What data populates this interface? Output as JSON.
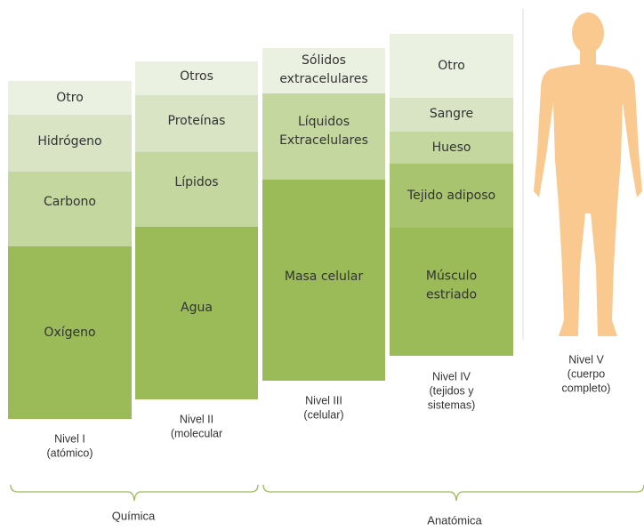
{
  "levels": [
    {
      "segments": [
        {
          "label": [
            "Otro"
          ]
        },
        {
          "label": [
            "Hidrógeno"
          ]
        },
        {
          "label": [
            "Carbono"
          ]
        },
        {
          "label": [
            "Oxígeno"
          ]
        }
      ],
      "label": [
        "Nivel I",
        "(atómico)"
      ]
    },
    {
      "segments": [
        {
          "label": [
            "Otros"
          ]
        },
        {
          "label": [
            "Proteínas"
          ]
        },
        {
          "label": [
            "Lípidos"
          ]
        },
        {
          "label": [
            "Agua"
          ]
        }
      ],
      "label": [
        "Nivel II",
        "(molecular"
      ]
    },
    {
      "segments": [
        {
          "label": [
            "Sólidos",
            "extracelulares"
          ]
        },
        {
          "label": [
            "Líquidos",
            "Extracelulares"
          ]
        },
        {
          "label": [
            "Masa celular"
          ]
        }
      ],
      "label": [
        "Nivel III",
        "(celular)"
      ]
    },
    {
      "segments": [
        {
          "label": [
            "Otro"
          ]
        },
        {
          "label": [
            "Sangre"
          ]
        },
        {
          "label": [
            "Hueso"
          ]
        },
        {
          "label": [
            "Tejido adiposo"
          ]
        },
        {
          "label": [
            "Músculo",
            "estriado"
          ]
        }
      ],
      "label": [
        "Nivel IV",
        "(tejidos y",
        "sistemas)"
      ]
    },
    {
      "segments": [],
      "label": [
        "Nivel V",
        "(cuerpo",
        "completo)"
      ]
    }
  ],
  "groups": [
    {
      "label": "Química"
    },
    {
      "label": "Anatómica"
    }
  ]
}
